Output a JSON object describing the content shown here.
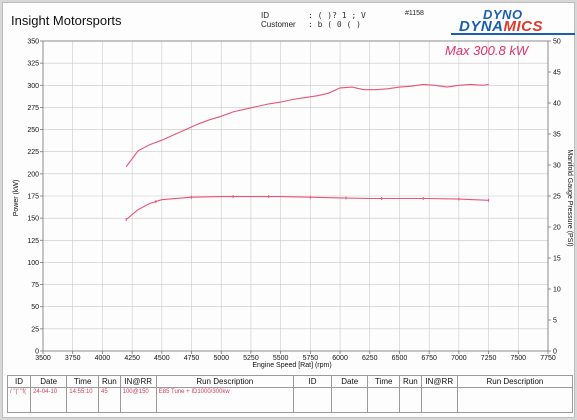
{
  "header": {
    "company": "Insight Motorsports",
    "id_label": "ID",
    "customer_label": "Customer",
    "id_value": ": ( )? 1 ; V",
    "customer_value": ": b ( 0 ( )",
    "run_number": "#1158"
  },
  "logo": {
    "line1": "DYNO",
    "line2_a": "DYNA",
    "line2_b": "MICS"
  },
  "colors": {
    "curve": "#e8557a",
    "grid": "#c9c9c9",
    "axis": "#777777",
    "annotation": "#e0306a"
  },
  "chart_data": {
    "type": "line",
    "title": "",
    "annotation": "Max 300.8 kW",
    "xlabel": "Engine Speed [Rat] (rpm)",
    "ylabel": "Power (kW)",
    "y2label": "Manifold Gauge Pressure (PSI)",
    "xlim": [
      3500,
      7750
    ],
    "ylim": [
      0,
      350
    ],
    "y2lim": [
      0,
      50
    ],
    "x_ticks": [
      3500,
      3750,
      4000,
      4250,
      4500,
      4750,
      5000,
      5250,
      5500,
      5750,
      6000,
      6250,
      6500,
      6750,
      7000,
      7250,
      7500,
      7750
    ],
    "y_ticks": [
      0,
      25,
      50,
      75,
      100,
      125,
      150,
      175,
      200,
      225,
      250,
      275,
      300,
      325,
      350
    ],
    "y2_ticks": [
      0,
      5,
      10,
      15,
      20,
      25,
      30,
      35,
      40,
      45,
      50
    ],
    "grid": true,
    "series": [
      {
        "name": "Power (kW)",
        "axis": "left",
        "x": [
          4200,
          4300,
          4400,
          4500,
          4600,
          4700,
          4800,
          4900,
          5000,
          5100,
          5200,
          5300,
          5400,
          5500,
          5600,
          5700,
          5800,
          5900,
          6000,
          6100,
          6200,
          6300,
          6400,
          6500,
          6600,
          6700,
          6800,
          6900,
          7000,
          7100,
          7200,
          7250
        ],
        "values": [
          208,
          226,
          233,
          238,
          244,
          250,
          256,
          261,
          265,
          270,
          273,
          276,
          279,
          281,
          284,
          286,
          288,
          291,
          297,
          298,
          295,
          295,
          296,
          298,
          299,
          301,
          300,
          298,
          300,
          301,
          300,
          300.8
        ]
      },
      {
        "name": "Manifold Gauge Pressure (PSI)",
        "axis": "right",
        "x": [
          4200,
          4300,
          4400,
          4500,
          4750,
          5000,
          5100,
          5250,
          5500,
          5750,
          6000,
          6250,
          6500,
          6750,
          7000,
          7250
        ],
        "values": [
          21.2,
          22.8,
          23.8,
          24.4,
          24.8,
          24.9,
          24.9,
          24.9,
          24.9,
          24.8,
          24.7,
          24.6,
          24.6,
          24.6,
          24.5,
          24.3
        ],
        "markers_x": [
          4200,
          4450,
          4750,
          5100,
          5400,
          5750,
          6050,
          6350,
          6700,
          7000,
          7250
        ]
      }
    ]
  },
  "footer": {
    "headers": [
      "ID",
      "Date",
      "Time",
      "Run",
      "IN@RR",
      "Run Description",
      "ID",
      "Date",
      "Time",
      "Run",
      "IN@RR",
      "Run Description"
    ],
    "row1": [
      "/ \"(' \"f(",
      "24-04-10",
      "14:55:10",
      "45",
      "100@150",
      "E85 Tune + ID1000/300kw",
      "",
      "",
      "",
      "",
      "",
      ""
    ]
  }
}
